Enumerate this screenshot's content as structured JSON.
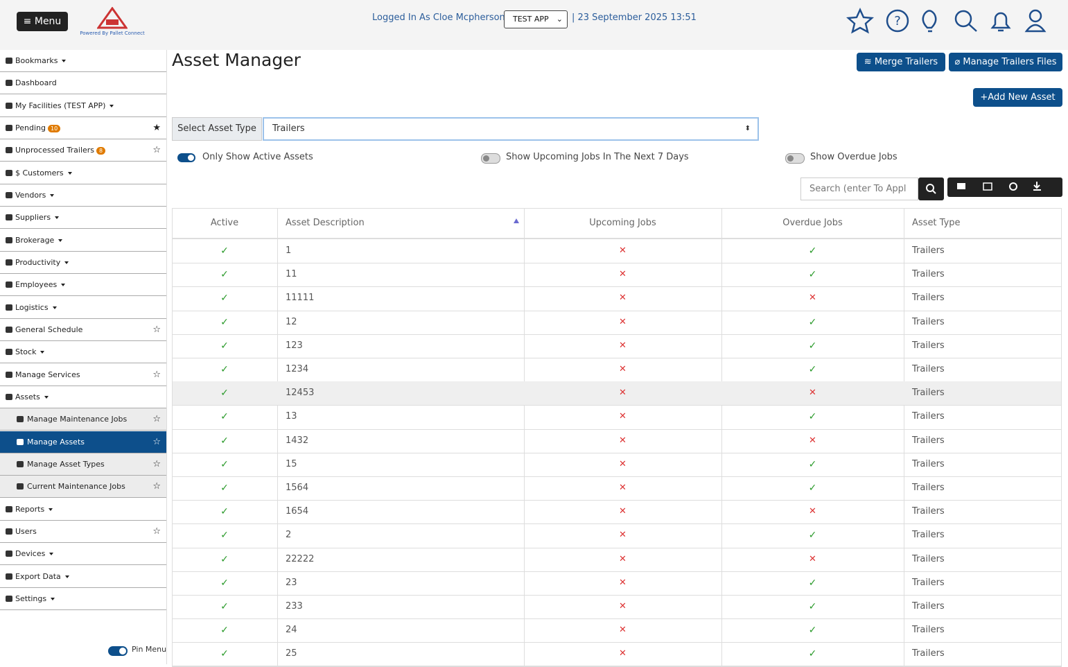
{
  "header": {
    "menu_button": "Menu",
    "logo_caption": "Powered By Pallet Connect",
    "logged_in": "Logged In As Cloe Mcpherson |",
    "app_select": "TEST APP",
    "datetime": "| 23 September 2025 13:51"
  },
  "sidebar": {
    "items": [
      {
        "label": "Bookmarks",
        "dropdown": true
      },
      {
        "label": "Dashboard"
      },
      {
        "label": "My Facilities (TEST APP)",
        "dropdown": true
      },
      {
        "label": "Pending",
        "badge": "10",
        "star": "filled"
      },
      {
        "label": "Unprocessed Trailers",
        "badge": "8",
        "star": "outline"
      },
      {
        "label": "$ Customers",
        "dropdown": true
      },
      {
        "label": "Vendors",
        "dropdown": true
      },
      {
        "label": "Suppliers",
        "dropdown": true
      },
      {
        "label": "Brokerage",
        "dropdown": true
      },
      {
        "label": "Productivity",
        "dropdown": true
      },
      {
        "label": "Employees",
        "dropdown": true
      },
      {
        "label": "Logistics",
        "dropdown": true
      },
      {
        "label": "General Schedule",
        "star": "outline"
      },
      {
        "label": "Stock",
        "dropdown": true
      },
      {
        "label": "Manage Services",
        "star": "outline"
      },
      {
        "label": "Assets",
        "dropdown": true
      },
      {
        "label": "Manage Maintenance Jobs",
        "star": "outline",
        "sub": true
      },
      {
        "label": "Manage Assets",
        "star": "outline",
        "sub": true,
        "active": true
      },
      {
        "label": "Manage Asset Types",
        "star": "outline",
        "sub": true
      },
      {
        "label": "Current Maintenance Jobs",
        "star": "outline",
        "sub": true
      },
      {
        "label": "Reports",
        "dropdown": true
      },
      {
        "label": "Users",
        "star": "outline"
      },
      {
        "label": "Devices",
        "dropdown": true
      },
      {
        "label": "Export Data",
        "dropdown": true
      },
      {
        "label": "Settings",
        "dropdown": true
      }
    ],
    "pin_menu": "Pin Menu"
  },
  "main": {
    "title": "Asset Manager",
    "buttons": [
      "Merge Trailers",
      "Manage Trailers Files",
      "+Add New Asset"
    ],
    "select_label": "Select Asset Type",
    "select_value": "Trailers",
    "toggles": [
      {
        "label": "Only Show Active Assets",
        "on": true
      },
      {
        "label": "Show Upcoming Jobs In The Next 7 Days",
        "on": false
      },
      {
        "label": "Show Overdue Jobs",
        "on": false
      }
    ],
    "search_placeholder": "Search (enter To Appl",
    "table": {
      "columns": [
        "Active",
        "Asset Description",
        "Upcoming Jobs",
        "Overdue Jobs",
        "Asset Type"
      ],
      "rows": [
        {
          "active": true,
          "description": "1",
          "upcoming": false,
          "overdue": true,
          "type": "Trailers"
        },
        {
          "active": true,
          "description": "11",
          "upcoming": false,
          "overdue": true,
          "type": "Trailers"
        },
        {
          "active": true,
          "description": "11111",
          "upcoming": false,
          "overdue": false,
          "type": "Trailers"
        },
        {
          "active": true,
          "description": "12",
          "upcoming": false,
          "overdue": true,
          "type": "Trailers"
        },
        {
          "active": true,
          "description": "123",
          "upcoming": false,
          "overdue": true,
          "type": "Trailers"
        },
        {
          "active": true,
          "description": "1234",
          "upcoming": false,
          "overdue": true,
          "type": "Trailers"
        },
        {
          "active": true,
          "description": "12453",
          "upcoming": false,
          "overdue": false,
          "type": "Trailers"
        },
        {
          "active": true,
          "description": "13",
          "upcoming": false,
          "overdue": true,
          "type": "Trailers"
        },
        {
          "active": true,
          "description": "1432",
          "upcoming": false,
          "overdue": false,
          "type": "Trailers"
        },
        {
          "active": true,
          "description": "15",
          "upcoming": false,
          "overdue": true,
          "type": "Trailers"
        },
        {
          "active": true,
          "description": "1564",
          "upcoming": false,
          "overdue": true,
          "type": "Trailers"
        },
        {
          "active": true,
          "description": "1654",
          "upcoming": false,
          "overdue": false,
          "type": "Trailers"
        },
        {
          "active": true,
          "description": "2",
          "upcoming": false,
          "overdue": true,
          "type": "Trailers"
        },
        {
          "active": true,
          "description": "22222",
          "upcoming": false,
          "overdue": false,
          "type": "Trailers"
        },
        {
          "active": true,
          "description": "23",
          "upcoming": false,
          "overdue": true,
          "type": "Trailers"
        },
        {
          "active": true,
          "description": "233",
          "upcoming": false,
          "overdue": true,
          "type": "Trailers"
        },
        {
          "active": true,
          "description": "24",
          "upcoming": false,
          "overdue": true,
          "type": "Trailers"
        },
        {
          "active": true,
          "description": "25",
          "upcoming": false,
          "overdue": true,
          "type": "Trailers"
        }
      ]
    }
  }
}
